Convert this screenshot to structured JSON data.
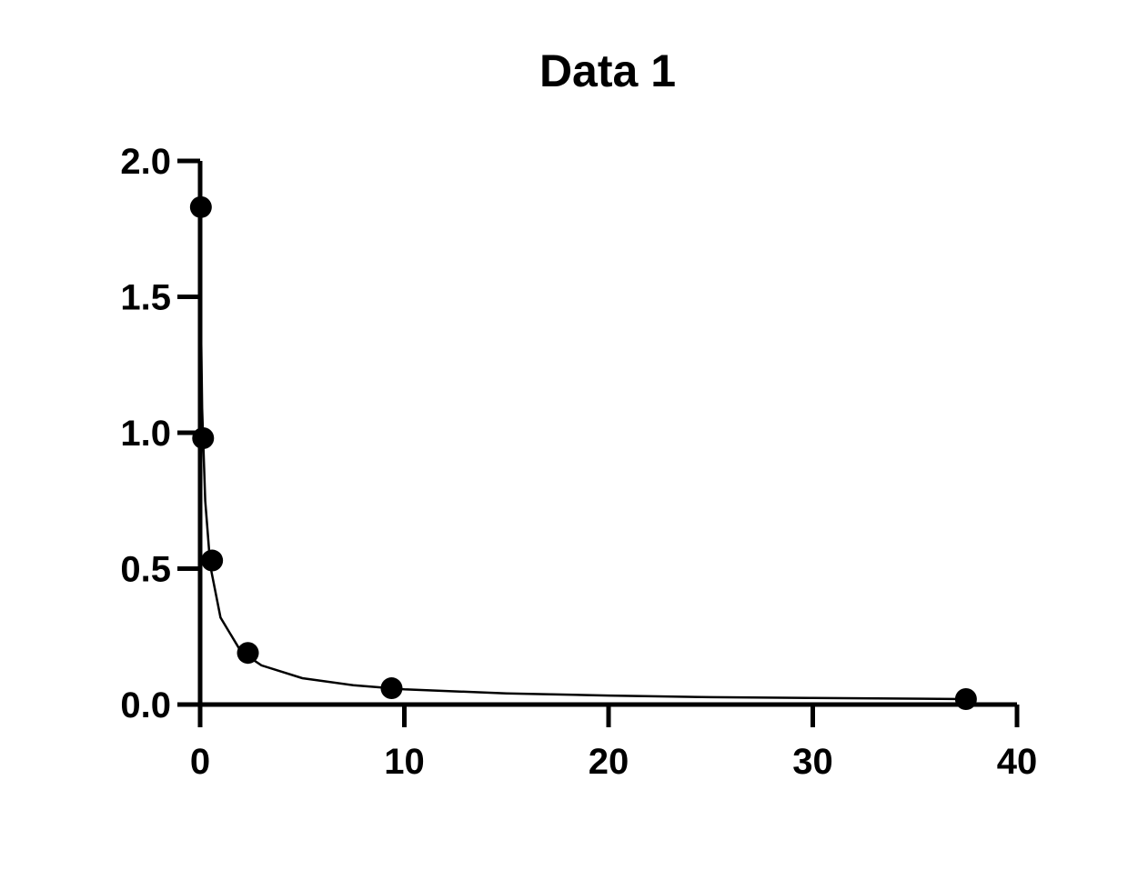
{
  "chart_data": {
    "type": "scatter",
    "title": "Data 1",
    "xlabel": "",
    "ylabel": "",
    "xlim": [
      0,
      40
    ],
    "ylim": [
      0,
      2.0
    ],
    "x_ticks": [
      0,
      10,
      20,
      30,
      40
    ],
    "x_tick_labels": [
      "0",
      "10",
      "20",
      "30",
      "40"
    ],
    "y_ticks": [
      0,
      0.5,
      1.0,
      1.5,
      2.0
    ],
    "y_tick_labels": [
      "0.0",
      "0.5",
      "1.0",
      "1.5",
      "2.0"
    ],
    "grid": false,
    "legend": "none",
    "colors": {
      "points": "#000000",
      "curve": "#000000",
      "axes": "#000000"
    },
    "series": [
      {
        "type": "scatter",
        "x": [
          0.037,
          0.146,
          0.586,
          2.34,
          9.375,
          37.5
        ],
        "y": [
          1.83,
          0.98,
          0.53,
          0.19,
          0.06,
          0.02
        ]
      },
      {
        "type": "line",
        "x": [
          0,
          0.1,
          0.25,
          0.5,
          1,
          2,
          3,
          5,
          7.5,
          10,
          15,
          20,
          25,
          30,
          37.5
        ],
        "y": [
          1.64,
          1.09,
          0.75,
          0.51,
          0.32,
          0.195,
          0.144,
          0.097,
          0.071,
          0.056,
          0.041,
          0.033,
          0.027,
          0.024,
          0.02
        ]
      }
    ]
  }
}
